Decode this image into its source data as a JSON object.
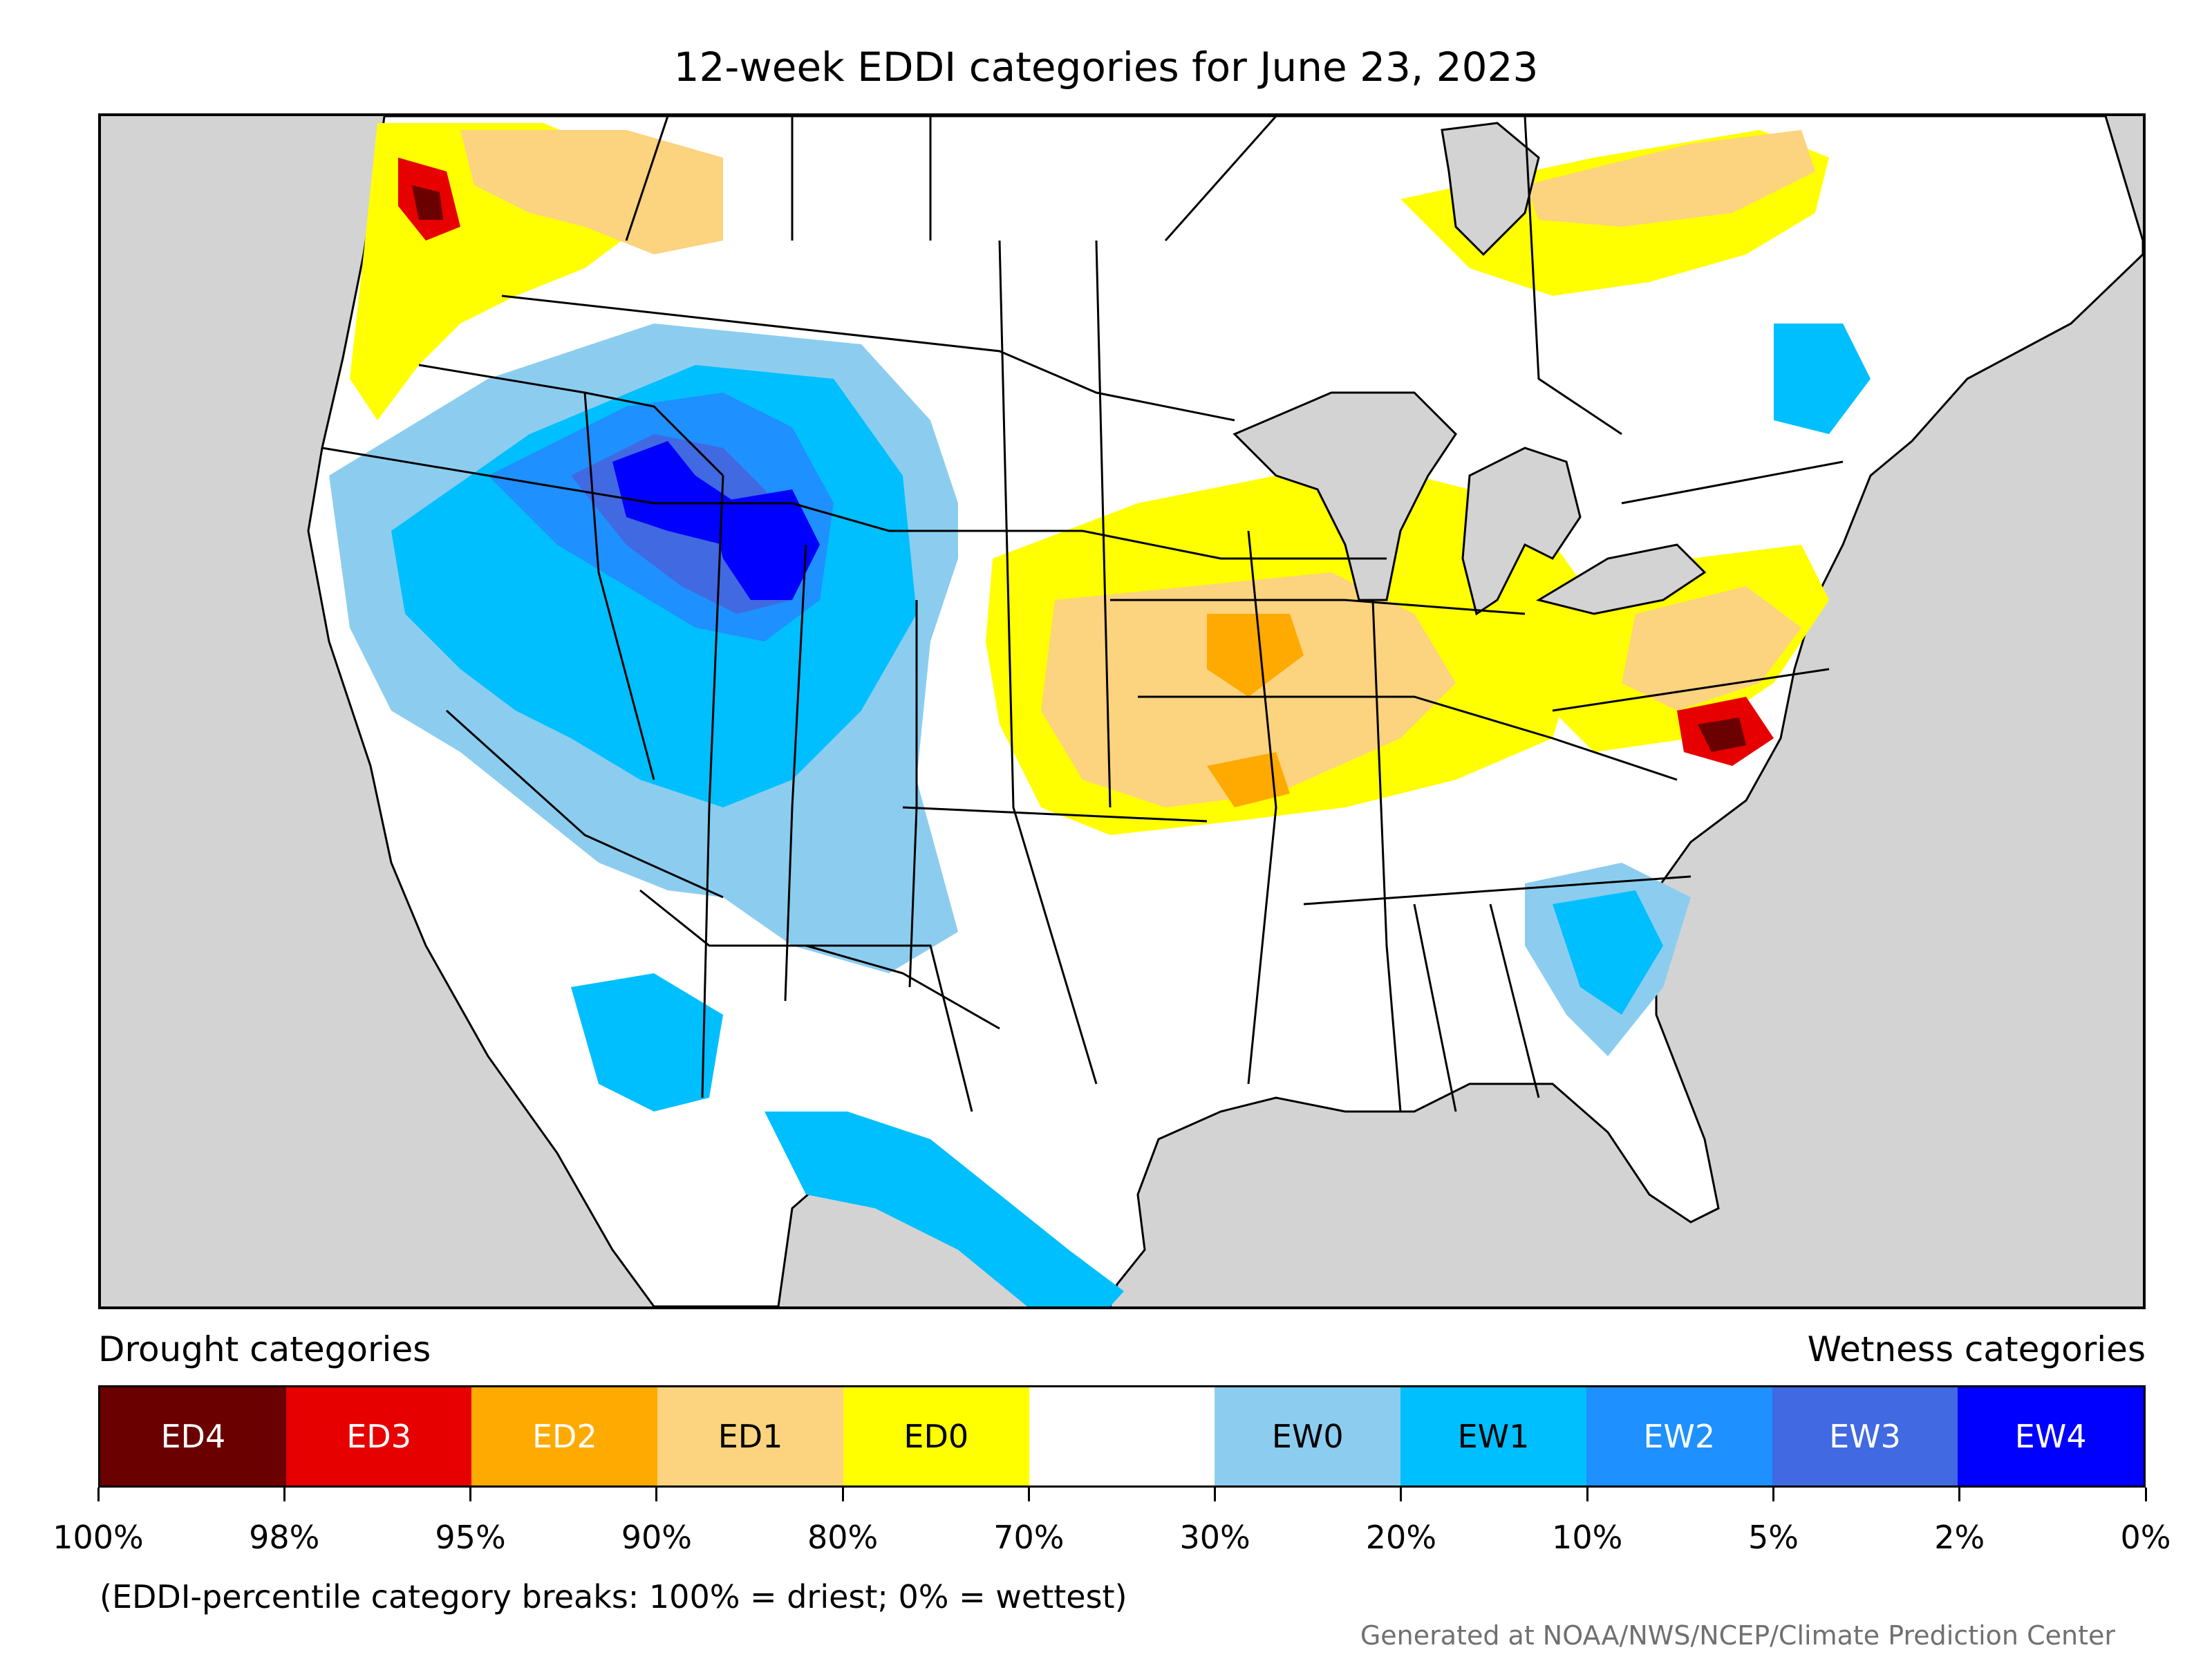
{
  "title": "12-week EDDI categories for June 23, 2023",
  "legend": {
    "drought_title": "Drought categories",
    "wetness_title": "Wetness categories",
    "categories": [
      {
        "label": "ED4",
        "color": "#6b0000",
        "text_color": "#ffffff"
      },
      {
        "label": "ED3",
        "color": "#e60000",
        "text_color": "#ffffff"
      },
      {
        "label": "ED2",
        "color": "#ffaa00",
        "text_color": "#ffffff"
      },
      {
        "label": "ED1",
        "color": "#fcd37f",
        "text_color": "#000000"
      },
      {
        "label": "ED0",
        "color": "#ffff00",
        "text_color": "#000000"
      },
      {
        "label": "",
        "color": "#ffffff",
        "text_color": "#000000"
      },
      {
        "label": "EW0",
        "color": "#8ccdef",
        "text_color": "#000000"
      },
      {
        "label": "EW1",
        "color": "#00bfff",
        "text_color": "#000000"
      },
      {
        "label": "EW2",
        "color": "#1e90ff",
        "text_color": "#ffffff"
      },
      {
        "label": "EW3",
        "color": "#4169e1",
        "text_color": "#ffffff"
      },
      {
        "label": "EW4",
        "color": "#0000ff",
        "text_color": "#ffffff"
      }
    ],
    "tick_labels": [
      "100%",
      "98%",
      "95%",
      "90%",
      "80%",
      "70%",
      "30%",
      "20%",
      "10%",
      "5%",
      "2%",
      "0%"
    ]
  },
  "footnote": "(EDDI-percentile category breaks: 100% = driest; 0% = wettest)",
  "credit": "Generated at NOAA/NWS/NCEP/Climate Prediction Center",
  "map": {
    "background_color": "#d3d3d3",
    "land_color": "#ffffff",
    "boundary_color": "#000000"
  }
}
